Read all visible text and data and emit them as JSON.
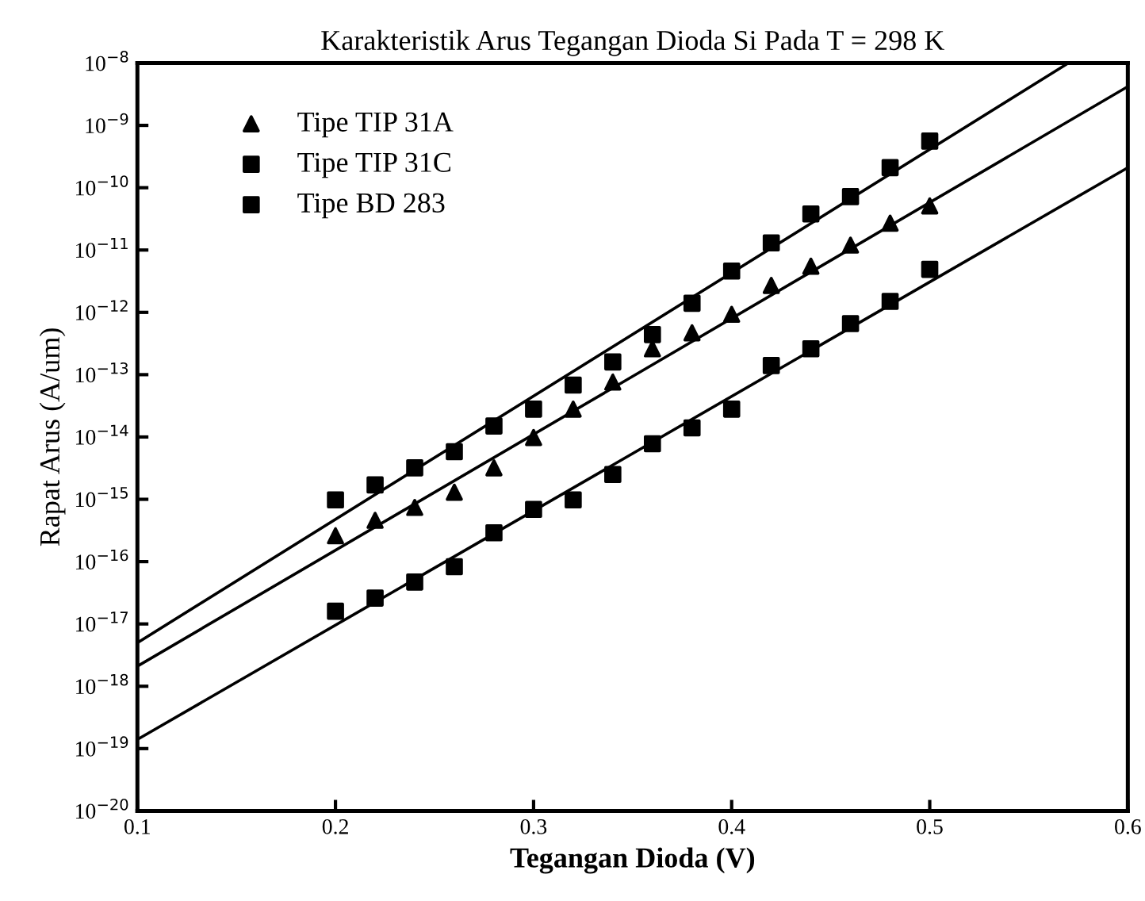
{
  "chart_data": {
    "type": "scatter",
    "title": "Karakteristik Arus Tegangan Dioda Si Pada T = 298 K",
    "xlabel": "Tegangan Dioda (V)",
    "ylabel": "Rapat Arus (A/um)",
    "x": [
      0.2,
      0.22,
      0.24,
      0.26,
      0.28,
      0.3,
      0.32,
      0.34,
      0.36,
      0.38,
      0.4,
      0.42,
      0.44,
      0.46,
      0.48,
      0.5
    ],
    "series": [
      {
        "name": "Tipe TIP 31A",
        "color": "#000000",
        "marker": "triangle",
        "values": [
          2.6e-16,
          4.6e-16,
          7.4e-16,
          1.3e-15,
          3.2e-15,
          9.8e-15,
          2.8e-14,
          7.6e-14,
          2.6e-13,
          4.7e-13,
          9.3e-13,
          2.7e-12,
          5.5e-12,
          1.2e-11,
          2.7e-11,
          5.1e-11
        ]
      },
      {
        "name": "Tipe TIP 31C",
        "color": "#000000",
        "marker": "square",
        "values": [
          9.8e-16,
          1.7e-15,
          3.2e-15,
          5.8e-15,
          1.5e-14,
          2.8e-14,
          6.8e-14,
          1.6e-13,
          4.4e-13,
          1.4e-12,
          4.6e-12,
          1.3e-11,
          3.8e-11,
          7.2e-11,
          2.1e-10,
          5.6e-10
        ]
      },
      {
        "name": "Tipe BD 283",
        "color": "#000000",
        "marker": "square",
        "values": [
          1.6e-17,
          2.6e-17,
          4.7e-17,
          8.3e-17,
          2.9e-16,
          6.9e-16,
          9.8e-16,
          2.5e-15,
          7.8e-15,
          1.4e-14,
          2.8e-14,
          1.4e-13,
          2.6e-13,
          6.6e-13,
          1.5e-12,
          4.9e-12
        ]
      },
      {
        "type": "line",
        "color": "#000000",
        "x": [
          0.1,
          0.57
        ],
        "values": [
          5e-18,
          1e-08
        ]
      },
      {
        "type": "line",
        "color": "#000000",
        "x": [
          0.1,
          0.6
        ],
        "values": [
          2.1e-18,
          4.2e-09
        ]
      },
      {
        "type": "line",
        "color": "#000000",
        "x": [
          0.1,
          0.6
        ],
        "values": [
          1.4e-19,
          2.1e-10
        ]
      }
    ],
    "log": "y",
    "xlim": [
      0.1,
      0.6
    ],
    "xticks": [
      0.1,
      0.2,
      0.3,
      0.4,
      0.5,
      0.6
    ],
    "ylim": [
      1e-20,
      1e-08
    ],
    "yticks": [
      {
        "value": 1e-20,
        "label": "10$^{−20}$"
      },
      {
        "value": 1e-19,
        "label": "10$^{−19}$"
      },
      {
        "value": 1e-18,
        "label": "10$^{−18}$"
      },
      {
        "value": 1e-17,
        "label": "10$^{−17}$"
      },
      {
        "value": 1e-16,
        "label": "10$^{−16}$"
      },
      {
        "value": 1e-15,
        "label": "10$^{−15}$"
      },
      {
        "value": 1e-14,
        "label": "10$^{−14}$"
      },
      {
        "value": 1e-13,
        "label": "10$^{−13}$"
      },
      {
        "value": 1e-12,
        "label": "10$^{−12}$"
      },
      {
        "value": 1e-11,
        "label": "10$^{−11}$"
      },
      {
        "value": 1e-10,
        "label": "10$^{−10}$"
      },
      {
        "value": 1e-09,
        "label": "10$^{−9}$"
      },
      {
        "value": 1e-08,
        "label": "10$^{−8}$"
      }
    ],
    "grid": false,
    "legend": "top left"
  }
}
